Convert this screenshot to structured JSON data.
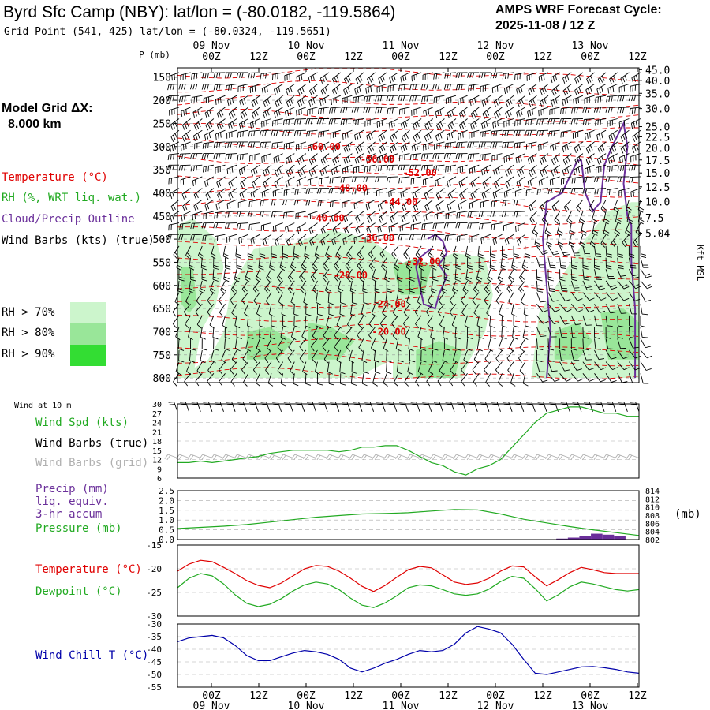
{
  "header": {
    "title": "Byrd Sfc Camp (NBY):  lat/lon = (-80.0182, -119.5864)",
    "subtitle": "Grid Point (541, 425) lat/lon = (-80.0324, -119.5651)",
    "cycle_line1": "AMPS WRF Forecast Cycle:",
    "cycle_line2": "2025-11-08 / 12  Z"
  },
  "model_grid": {
    "line1": "Model Grid ΔX:",
    "line2": "8.000 km"
  },
  "legend": {
    "temperature": "Temperature (°C)",
    "rh": "RH (%, WRT liq. wat.)",
    "cloud": "Cloud/Precip Outline",
    "wind_barbs": "Wind Barbs (kts) (true)",
    "rh70": "RH > 70%",
    "rh80": "RH > 80%",
    "rh90": "RH > 90%"
  },
  "colors": {
    "temperature": "#e00000",
    "rh": "#22aa22",
    "cloud": "#6a2f9a",
    "windchill": "#0000aa",
    "rh70": "#ccf5cc",
    "rh80": "#99e699",
    "rh90": "#33dd33",
    "grid_barb": "#b0b0b0"
  },
  "panel_labels": {
    "wind_at_10m": "Wind at 10 m",
    "wind_spd": "Wind Spd (kts)",
    "wind_barbs_true": "Wind Barbs (true)",
    "wind_barbs_grid": "Wind Barbs (grid)",
    "precip_l1": "Precip (mm)",
    "precip_l2": "liq. equiv.",
    "precip_l3": "3-hr accum",
    "pressure": "Pressure (mb)",
    "pressure_unit": "(mb)",
    "temperature": "Temperature (°C)",
    "dewpoint": "Dewpoint (°C)",
    "windchill": "Wind Chill T (°C)",
    "p_axis": "P (mb)",
    "kft_axis": "Kft MSL"
  },
  "chart_data": [
    {
      "type": "heatmap",
      "name": "sounding",
      "x_ticks": [
        "00Z",
        "12Z",
        "00Z",
        "12Z",
        "00Z",
        "12Z",
        "00Z",
        "12Z",
        "00Z",
        "12Z"
      ],
      "x_ticks_hours": [
        12,
        24,
        36,
        48,
        60,
        72,
        84,
        96,
        108,
        120
      ],
      "x_dates": [
        "09 Nov",
        "10 Nov",
        "11 Nov",
        "12 Nov",
        "13 Nov"
      ],
      "x_range_hours": [
        0,
        120
      ],
      "ylabel": "P (mb)",
      "pressure_ticks": [
        "150",
        "200",
        "250",
        "300",
        "350",
        "400",
        "450",
        "500",
        "550",
        "600",
        "650",
        "700",
        "750",
        "800"
      ],
      "pressure_range": [
        130,
        810
      ],
      "height_label": "Kft MSL",
      "height_ticks": [
        {
          "label": "45.0",
          "p": 134
        },
        {
          "label": "40.0",
          "p": 157
        },
        {
          "label": "35.0",
          "p": 185
        },
        {
          "label": "30.0",
          "p": 218
        },
        {
          "label": "25.0",
          "p": 257
        },
        {
          "label": "22.5",
          "p": 279
        },
        {
          "label": "20.0",
          "p": 303
        },
        {
          "label": "17.5",
          "p": 329
        },
        {
          "label": "15.0",
          "p": 357
        },
        {
          "label": "12.5",
          "p": 387
        },
        {
          "label": "10.0",
          "p": 419
        },
        {
          "label": "7.5",
          "p": 454
        },
        {
          "label": "5.04",
          "p": 487
        }
      ],
      "temperature_labels": [
        {
          "text": "-60.00",
          "x": 38,
          "p": 300
        },
        {
          "text": "-56.00",
          "x": 52,
          "p": 328
        },
        {
          "text": "-52.00",
          "x": 63,
          "p": 357
        },
        {
          "text": "-48.00",
          "x": 45,
          "p": 390
        },
        {
          "text": "-44.00",
          "x": 58,
          "p": 420
        },
        {
          "text": "-40.00",
          "x": 39,
          "p": 455
        },
        {
          "text": "-36.00",
          "x": 52,
          "p": 497
        },
        {
          "text": "-32.00",
          "x": 64,
          "p": 548
        },
        {
          "text": "-28.00",
          "x": 45,
          "p": 578
        },
        {
          "text": "-24.00",
          "x": 55,
          "p": 640
        },
        {
          "text": "-20.00",
          "x": 55,
          "p": 700
        }
      ]
    },
    {
      "type": "line",
      "name": "wind10m",
      "ylim": [
        6,
        30
      ],
      "yticks": [
        6,
        9,
        12,
        15,
        18,
        21,
        24,
        27,
        30
      ],
      "series": [
        {
          "name": "Wind Spd (kts)",
          "x": [
            0,
            3,
            6,
            9,
            12,
            15,
            18,
            21,
            24,
            27,
            30,
            33,
            36,
            39,
            42,
            45,
            48,
            51,
            54,
            57,
            60,
            63,
            66,
            69,
            72,
            75,
            78,
            81,
            84,
            87,
            90,
            93,
            96,
            99,
            102,
            105,
            108,
            111,
            114,
            117,
            120
          ],
          "values": [
            11,
            11,
            11.5,
            11,
            11.5,
            12,
            12.5,
            13,
            14,
            14.5,
            15,
            15,
            15,
            15,
            14.5,
            15,
            16,
            16,
            16.5,
            16.5,
            15,
            13,
            11,
            10,
            8,
            7,
            9,
            10,
            12,
            16,
            20,
            24,
            27,
            28,
            29,
            29,
            28,
            27,
            27,
            26,
            26
          ]
        }
      ]
    },
    {
      "type": "bar",
      "name": "precip_pressure",
      "ylim_precip": [
        0,
        2.5
      ],
      "yticks_precip": [
        "0.0",
        "0.5",
        "1.0",
        "1.5",
        "2.0",
        "2.5"
      ],
      "ylim_pressure": [
        802,
        814
      ],
      "yticks_pressure": [
        "814",
        "812",
        "810",
        "808",
        "806",
        "804",
        "802"
      ],
      "precip": [
        {
          "x": 100,
          "value": 0.05
        },
        {
          "x": 103,
          "value": 0.1
        },
        {
          "x": 106,
          "value": 0.2
        },
        {
          "x": 109,
          "value": 0.3
        },
        {
          "x": 112,
          "value": 0.25
        },
        {
          "x": 115,
          "value": 0.2
        }
      ],
      "pressure": {
        "x": [
          0,
          6,
          12,
          18,
          24,
          30,
          36,
          42,
          48,
          54,
          60,
          66,
          72,
          78,
          84,
          90,
          96,
          102,
          108,
          114,
          120
        ],
        "values": [
          804.7,
          805,
          805.3,
          805.7,
          806.3,
          806.9,
          807.5,
          807.9,
          808.3,
          808.4,
          808.6,
          809,
          809.4,
          809.3,
          808.3,
          807,
          806.1,
          805.2,
          804.4,
          803.7,
          803
        ]
      }
    },
    {
      "type": "line",
      "name": "temp_dew",
      "ylim": [
        -30,
        -15
      ],
      "yticks": [
        "-15",
        "-20",
        "-25",
        "-30"
      ],
      "series": [
        {
          "name": "Temperature (°C)",
          "x": [
            0,
            3,
            6,
            9,
            12,
            15,
            18,
            21,
            24,
            27,
            30,
            33,
            36,
            39,
            42,
            45,
            48,
            51,
            54,
            57,
            60,
            63,
            66,
            69,
            72,
            75,
            78,
            81,
            84,
            87,
            90,
            93,
            96,
            99,
            102,
            105,
            108,
            111,
            114,
            117,
            120
          ],
          "values": [
            -20.5,
            -19,
            -18.2,
            -18.5,
            -19.7,
            -21,
            -22.5,
            -23.5,
            -24,
            -23,
            -21.5,
            -20,
            -19.3,
            -19.5,
            -20.5,
            -22,
            -23.7,
            -24.8,
            -23.5,
            -21.8,
            -20.2,
            -19.5,
            -19.8,
            -21.3,
            -22.8,
            -23.3,
            -23,
            -22,
            -20.5,
            -19.4,
            -19.6,
            -21.7,
            -23.6,
            -22.3,
            -20.8,
            -19.7,
            -20.2,
            -20.8,
            -21,
            -21,
            -21
          ]
        },
        {
          "name": "Dewpoint (°C)",
          "x": [
            0,
            3,
            6,
            9,
            12,
            15,
            18,
            21,
            24,
            27,
            30,
            33,
            36,
            39,
            42,
            45,
            48,
            51,
            54,
            57,
            60,
            63,
            66,
            69,
            72,
            75,
            78,
            81,
            84,
            87,
            90,
            93,
            96,
            99,
            102,
            105,
            108,
            111,
            114,
            117,
            120
          ],
          "values": [
            -24,
            -22,
            -21,
            -21.5,
            -23.2,
            -25.5,
            -27.3,
            -28,
            -27.5,
            -26.3,
            -24.7,
            -23.4,
            -22.8,
            -23.2,
            -24.4,
            -26.2,
            -27.7,
            -28.2,
            -27.2,
            -25.7,
            -24,
            -23.4,
            -23.6,
            -24.4,
            -25.3,
            -25.6,
            -25.3,
            -24.3,
            -22.7,
            -21.6,
            -22,
            -24.2,
            -26.8,
            -25.5,
            -23.8,
            -22.8,
            -23.2,
            -23.8,
            -24.4,
            -24.7,
            -24.4
          ]
        }
      ]
    },
    {
      "type": "line",
      "name": "windchill",
      "ylim": [
        -55,
        -30
      ],
      "yticks": [
        "-30",
        "-35",
        "-40",
        "-45",
        "-50",
        "-55"
      ],
      "series": [
        {
          "name": "Wind Chill T (°C)",
          "x": [
            0,
            3,
            6,
            9,
            12,
            15,
            18,
            21,
            24,
            27,
            30,
            33,
            36,
            39,
            42,
            45,
            48,
            51,
            54,
            57,
            60,
            63,
            66,
            69,
            72,
            75,
            78,
            81,
            84,
            87,
            90,
            93,
            96,
            99,
            102,
            105,
            108,
            111,
            114,
            117,
            120
          ],
          "values": [
            -37,
            -35.5,
            -35,
            -34.5,
            -35.5,
            -38.5,
            -42.5,
            -44.5,
            -44.5,
            -43,
            -41.5,
            -40.5,
            -41,
            -42,
            -44,
            -47.5,
            -49,
            -47.5,
            -45.5,
            -44,
            -42,
            -40.5,
            -41,
            -40.5,
            -38,
            -33.5,
            -31,
            -32,
            -33.5,
            -38,
            -44,
            -49.5,
            -50,
            -49,
            -48,
            -47,
            -46.8,
            -47.3,
            -48,
            -49,
            -49.5
          ]
        }
      ]
    }
  ]
}
